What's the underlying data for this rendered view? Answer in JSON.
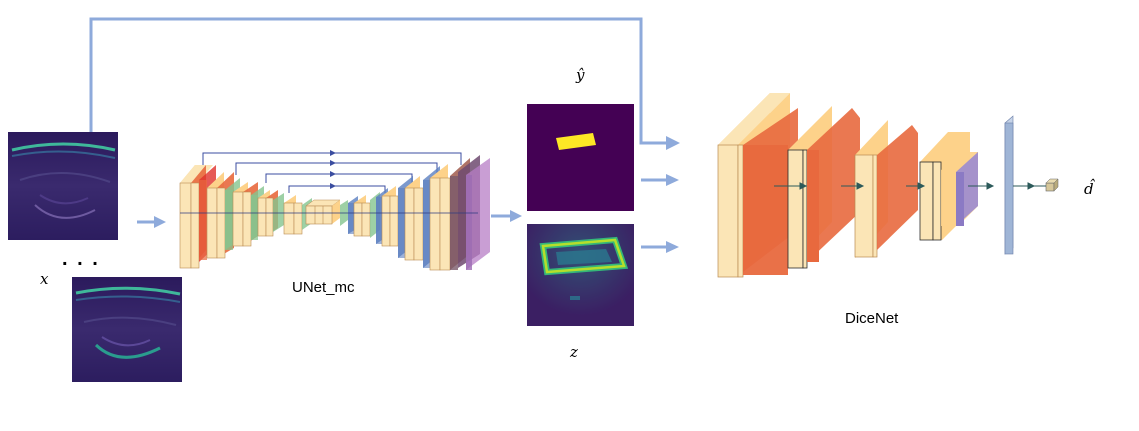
{
  "labels": {
    "input_var": "x",
    "ellipsis": ". . .",
    "unet_name": "UNet_mc",
    "seg_output_var": "ŷ",
    "latent_var": "z",
    "dicenet_name": "DiceNet",
    "score_var": "d̂"
  },
  "colors": {
    "arrow": "#8eaadb",
    "skip": "#3b4da0",
    "conv_face": "#fbe5b6",
    "conv_side": "#fdd28a",
    "relu": "#e8693e",
    "pool": "#e0312a",
    "concat_green": "#84c48e",
    "upconv_blue": "#5b7fc0",
    "softmax": "#b77ec6",
    "fc": "#9fb5d6",
    "viridis_dark": "#440154",
    "viridis_teal": "#2a788e",
    "viridis_green": "#7ad151",
    "viridis_yellow": "#fde725"
  },
  "icons": {
    "ultrasound_image": "ultrasound-image-icon",
    "segmentation_map": "segmentation-map-icon",
    "latent_map": "latent-map-icon"
  }
}
